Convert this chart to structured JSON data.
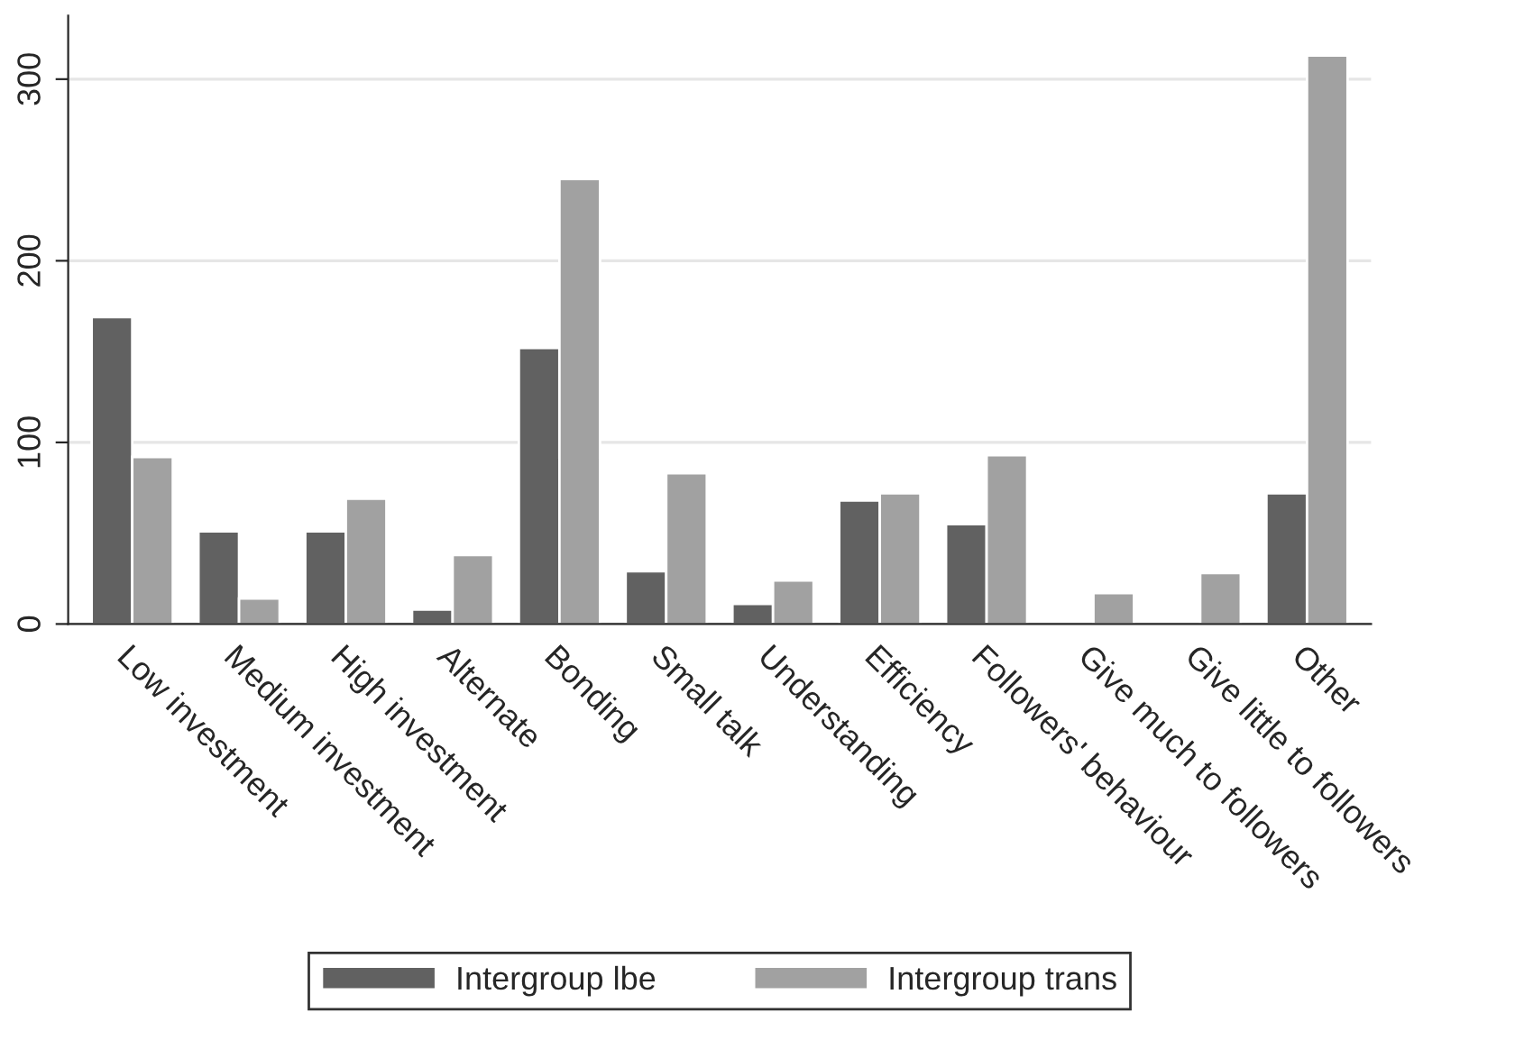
{
  "chart_data": {
    "type": "bar",
    "categories": [
      "Low investment",
      "Medium investment",
      "High investment",
      "Alternate",
      "Bonding",
      "Small talk",
      "Understanding",
      "Efficiency",
      "Followers' behaviour",
      "Give much to followers",
      "Give little to followers",
      "Other"
    ],
    "series": [
      {
        "name": "Intergroup lbe",
        "color": "#616161",
        "values": [
          169,
          51,
          51,
          8,
          152,
          29,
          11,
          68,
          55,
          null,
          null,
          72
        ]
      },
      {
        "name": "Intergroup trans",
        "color": "#a1a1a1",
        "values": [
          92,
          14,
          69,
          38,
          245,
          83,
          24,
          72,
          93,
          17,
          28,
          313
        ]
      }
    ],
    "ylim": [
      0,
      335
    ],
    "yticks": [
      0,
      100,
      200,
      300
    ],
    "grid": "y",
    "legend": "bottom"
  }
}
